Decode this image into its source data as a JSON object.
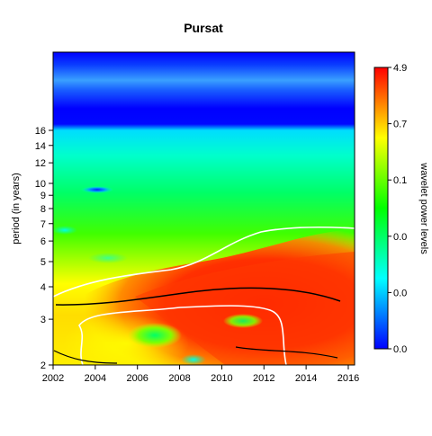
{
  "chart_data": {
    "type": "heatmap",
    "title": "Pursat",
    "xlabel": "",
    "ylabel": "period (in years)",
    "x_ticks": [
      "2002",
      "2004",
      "2006",
      "2008",
      "2010",
      "2012",
      "2014",
      "2016"
    ],
    "x_range": [
      2002,
      2016.3
    ],
    "y_scale": "log2",
    "y_ticks": [
      "2",
      "3",
      "4",
      "5",
      "6",
      "7",
      "8",
      "9",
      "10",
      "12",
      "14",
      "16"
    ],
    "y_range": [
      2,
      32
    ],
    "colorbar": {
      "label": "wavelet power levels",
      "tick_labels": [
        "0.0",
        "0.0",
        "0.0",
        "0.1",
        "0.7",
        "4.9"
      ],
      "colors": [
        "#0000ff",
        "#00ffff",
        "#00ff00",
        "#ffff00",
        "#ff0000"
      ]
    },
    "features": {
      "high_power_region": "period 2-4 years, 2008-2016",
      "contours": "white significance contours; black ridge line near period 3.8"
    }
  }
}
